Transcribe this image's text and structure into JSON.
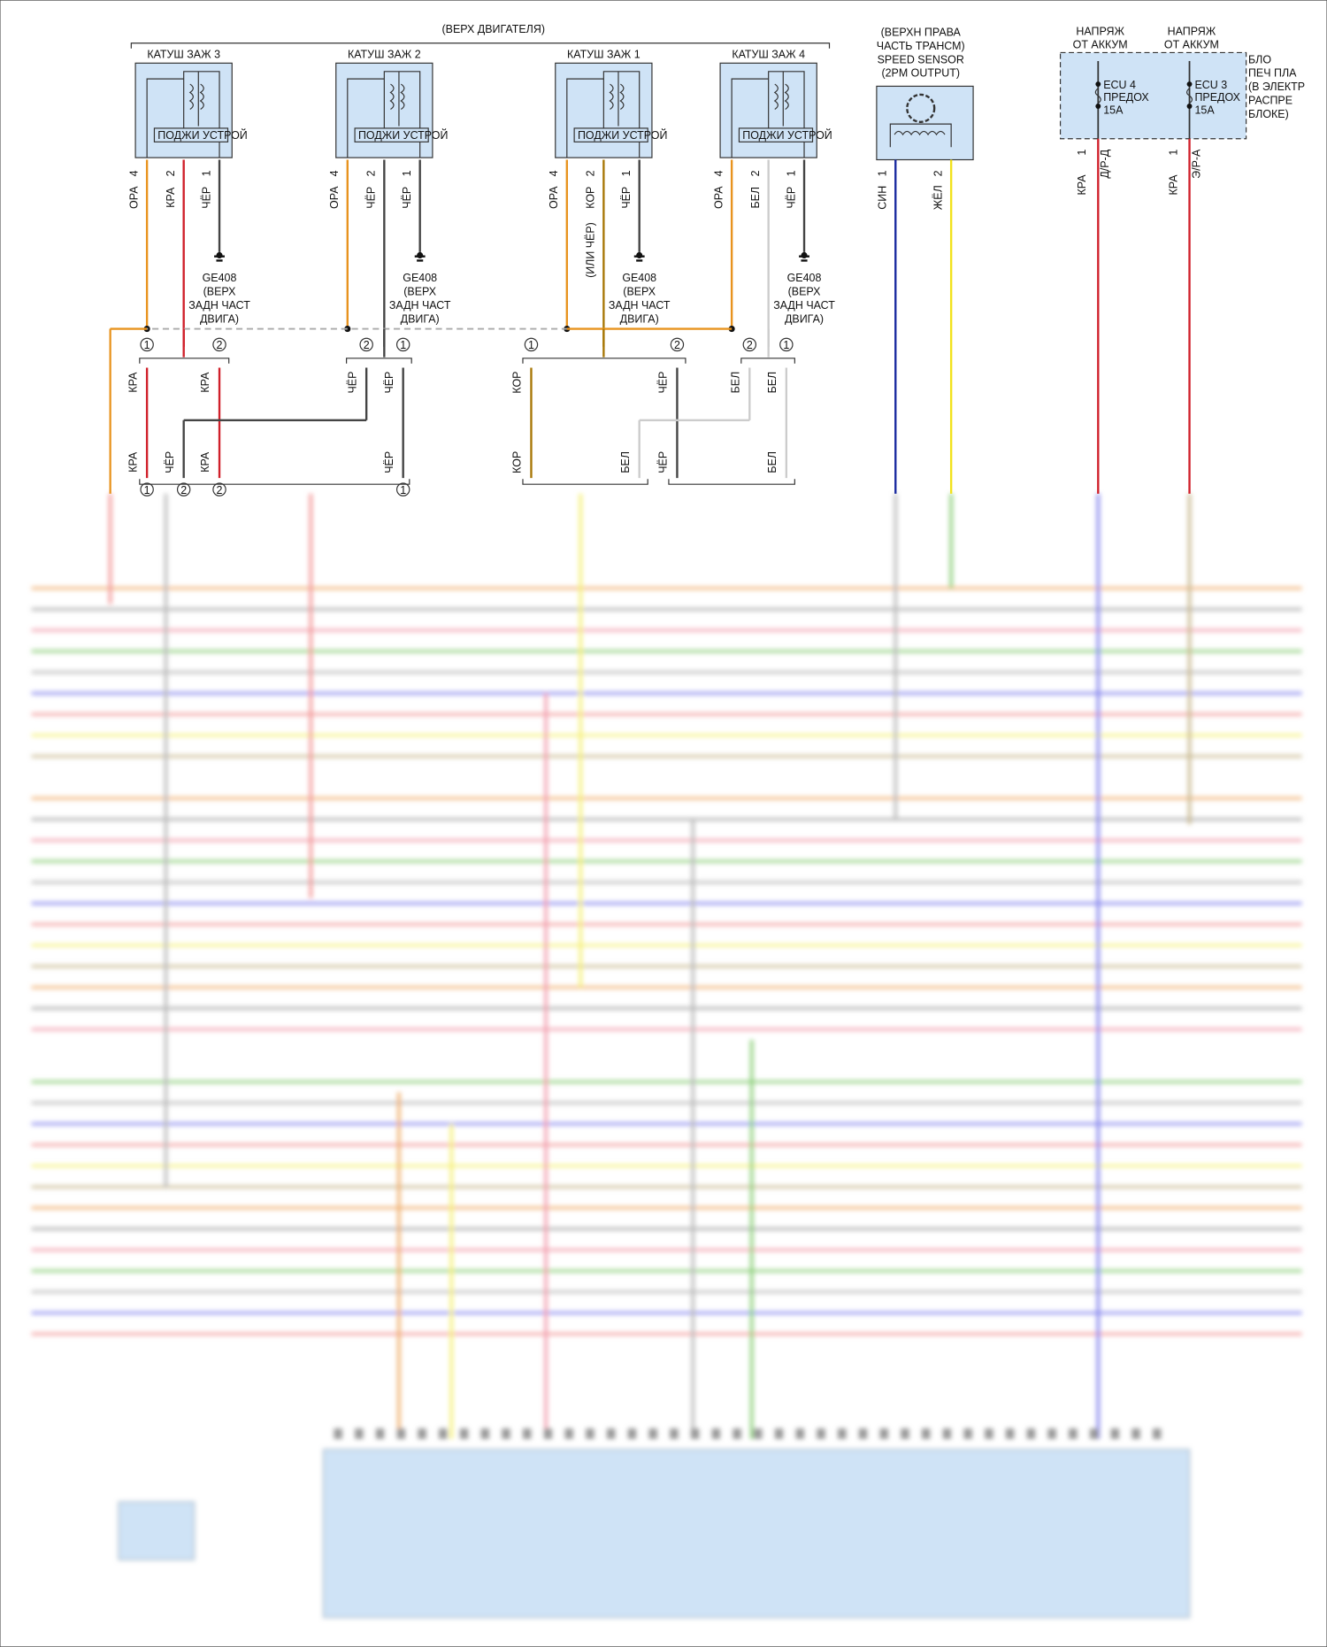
{
  "engine_top": "(ВЕРХ ДВИГАТЕЛЯ)",
  "coils": [
    {
      "title": "КАТУШ ЗАЖ 3",
      "device": "ПОДЖИ УСТРОЙ",
      "pins": [
        {
          "num": "4",
          "wire": "ОРА"
        },
        {
          "num": "2",
          "wire": "КРА"
        },
        {
          "num": "1",
          "wire": "ЧЁР"
        }
      ],
      "ground": [
        "GE408",
        "(ВЕРХ",
        "ЗАДН ЧАСТ",
        "ДВИГА)"
      ]
    },
    {
      "title": "КАТУШ ЗАЖ 2",
      "device": "ПОДЖИ УСТРОЙ",
      "pins": [
        {
          "num": "4",
          "wire": "ОРА"
        },
        {
          "num": "2",
          "wire": "ЧЁР"
        },
        {
          "num": "1",
          "wire": "ЧЁР"
        }
      ],
      "ground": [
        "GE408",
        "(ВЕРХ",
        "ЗАДН ЧАСТ",
        "ДВИГА)"
      ]
    },
    {
      "title": "КАТУШ ЗАЖ 1",
      "device": "ПОДЖИ УСТРОЙ",
      "pins": [
        {
          "num": "4",
          "wire": "ОРА"
        },
        {
          "num": "2",
          "wire": "КОР"
        },
        {
          "num": "1",
          "wire": "ЧЁР"
        }
      ],
      "ground": [
        "GE408",
        "(ВЕРХ",
        "ЗАДН ЧАСТ",
        "ДВИГА)"
      ],
      "alt_wire": "(ИЛИ ЧЁР)"
    },
    {
      "title": "КАТУШ ЗАЖ 4",
      "device": "ПОДЖИ УСТРОЙ",
      "pins": [
        {
          "num": "4",
          "wire": "ОРА"
        },
        {
          "num": "2",
          "wire": "БЕЛ"
        },
        {
          "num": "1",
          "wire": "ЧЁР"
        }
      ],
      "ground": [
        "GE408",
        "(ВЕРХ",
        "ЗАДН ЧАСТ",
        "ДВИГА)"
      ]
    }
  ],
  "connector_upper": [
    "1",
    "2",
    "2",
    "1",
    "1",
    "2",
    "2",
    "1"
  ],
  "connector_lower": [
    "1",
    "2",
    "2",
    "1"
  ],
  "wires_upper": [
    "КРА",
    "КРА",
    "ЧЁР",
    "ЧЁР",
    "КОР",
    "ЧЁР",
    "БЕЛ",
    "БЕЛ"
  ],
  "wires_lower": [
    "КРА",
    "ЧЁР",
    "КРА",
    "ЧЁР",
    "КОР",
    "БЕЛ",
    "ЧЁР",
    "БЕЛ"
  ],
  "speed_sensor": {
    "title": [
      "(ВЕРХН ПРАВА",
      "ЧАСТЬ ТРАНСМ)",
      "SPEED SENSOR",
      "(2PM OUTPUT)"
    ],
    "pins": [
      {
        "num": "1",
        "wire": "СИН"
      },
      {
        "num": "2",
        "wire": "ЖЁЛ"
      }
    ]
  },
  "fuse_block": {
    "label": [
      "БЛО",
      "ПЕЧ ПЛА",
      "(В ЭЛЕКТР",
      "РАСПРЕ",
      "БЛОКЕ)"
    ],
    "fuses": [
      {
        "source": [
          "НАПРЯЖ",
          "ОТ АККУМ"
        ],
        "name": [
          "ECU 4",
          "ПРЕДОХ",
          "15A"
        ],
        "pin": "1",
        "wire": "КРА",
        "circuit": "Д/Р-Д"
      },
      {
        "source": [
          "НАПРЯЖ",
          "ОТ АККУМ"
        ],
        "name": [
          "ECU 3",
          "ПРЕДОХ",
          "15A"
        ],
        "pin": "1",
        "wire": "КРА",
        "circuit": "Э/Р-А"
      }
    ]
  }
}
